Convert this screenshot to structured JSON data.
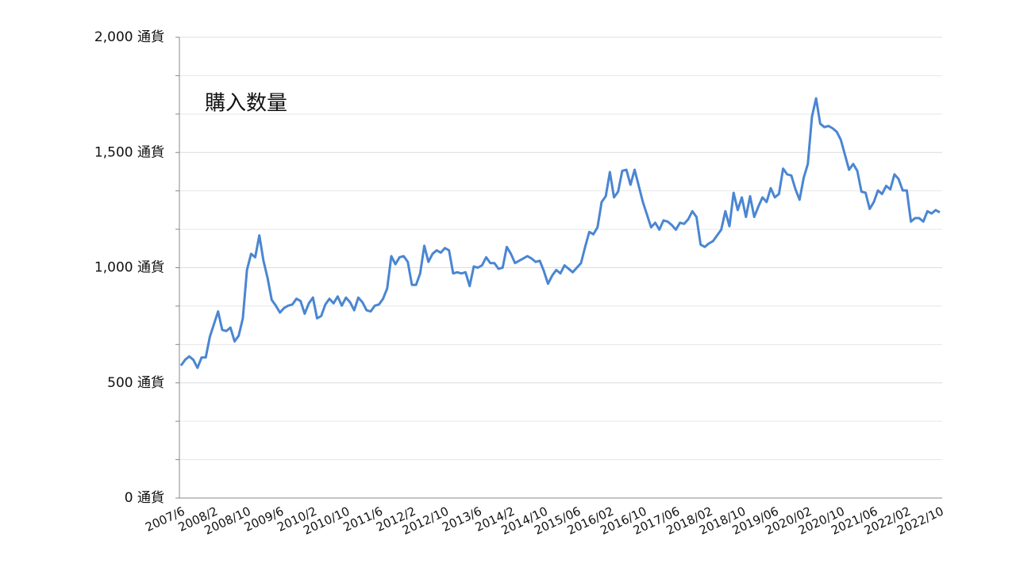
{
  "chart_data": {
    "type": "line",
    "annotation": "購入数量",
    "categories": [
      "2007/6",
      null,
      null,
      null,
      null,
      null,
      null,
      null,
      "2008/2",
      null,
      null,
      null,
      null,
      null,
      null,
      null,
      "2008/10",
      null,
      null,
      null,
      null,
      null,
      null,
      null,
      "2009/6",
      null,
      null,
      null,
      null,
      null,
      null,
      null,
      "2010/2",
      null,
      null,
      null,
      null,
      null,
      null,
      null,
      "2010/10",
      null,
      null,
      null,
      null,
      null,
      null,
      null,
      "2011/6",
      null,
      null,
      null,
      null,
      null,
      null,
      null,
      "2012/2",
      null,
      null,
      null,
      null,
      null,
      null,
      null,
      "2012/10",
      null,
      null,
      null,
      null,
      null,
      null,
      null,
      "2013/6",
      null,
      null,
      null,
      null,
      null,
      null,
      null,
      "2014/2",
      null,
      null,
      null,
      null,
      null,
      null,
      null,
      "2014/10",
      null,
      null,
      null,
      null,
      null,
      null,
      null,
      "2015/06",
      null,
      null,
      null,
      null,
      null,
      null,
      null,
      "2016/02",
      null,
      null,
      null,
      null,
      null,
      null,
      null,
      "2016/10",
      null,
      null,
      null,
      null,
      null,
      null,
      null,
      "2017/06",
      null,
      null,
      null,
      null,
      null,
      null,
      null,
      "2018/02",
      null,
      null,
      null,
      null,
      null,
      null,
      null,
      "2018/10",
      null,
      null,
      null,
      null,
      null,
      null,
      null,
      "2019/06",
      null,
      null,
      null,
      null,
      null,
      null,
      null,
      "2020/02",
      null,
      null,
      null,
      null,
      null,
      null,
      null,
      "2020/10",
      null,
      null,
      null,
      null,
      null,
      null,
      null,
      "2021/06",
      null,
      null,
      null,
      null,
      null,
      null,
      null,
      "2022/02",
      null,
      null,
      null,
      null,
      null,
      null,
      null,
      "2022/10"
    ],
    "series": [
      {
        "color": "#4a86d2",
        "values": [
          575,
          600,
          615,
          600,
          565,
          610,
          610,
          700,
          755,
          810,
          730,
          725,
          740,
          680,
          705,
          780,
          990,
          1060,
          1045,
          1140,
          1030,
          955,
          860,
          835,
          805,
          825,
          835,
          840,
          865,
          855,
          800,
          845,
          870,
          780,
          790,
          840,
          865,
          845,
          875,
          835,
          870,
          850,
          815,
          870,
          850,
          815,
          810,
          835,
          840,
          865,
          910,
          1050,
          1015,
          1045,
          1050,
          1025,
          925,
          925,
          975,
          1095,
          1025,
          1060,
          1075,
          1065,
          1085,
          1075,
          975,
          980,
          975,
          980,
          920,
          1005,
          1000,
          1010,
          1045,
          1020,
          1020,
          995,
          1000,
          1090,
          1060,
          1020,
          1030,
          1040,
          1050,
          1040,
          1025,
          1030,
          985,
          930,
          965,
          990,
          975,
          1010,
          995,
          980,
          1000,
          1020,
          1090,
          1155,
          1145,
          1175,
          1285,
          1310,
          1415,
          1305,
          1330,
          1420,
          1425,
          1360,
          1425,
          1355,
          1285,
          1230,
          1175,
          1195,
          1165,
          1205,
          1200,
          1185,
          1165,
          1195,
          1190,
          1210,
          1245,
          1220,
          1100,
          1090,
          1105,
          1115,
          1140,
          1165,
          1245,
          1180,
          1325,
          1250,
          1305,
          1220,
          1310,
          1220,
          1265,
          1305,
          1285,
          1345,
          1305,
          1320,
          1430,
          1405,
          1400,
          1340,
          1295,
          1390,
          1450,
          1655,
          1735,
          1625,
          1610,
          1615,
          1605,
          1590,
          1555,
          1490,
          1425,
          1450,
          1420,
          1330,
          1325,
          1255,
          1285,
          1335,
          1320,
          1355,
          1340,
          1405,
          1385,
          1335,
          1335,
          1200,
          1215,
          1215,
          1200,
          1245,
          1235,
          1250,
          1240
        ]
      }
    ],
    "ylim": [
      0,
      2000
    ],
    "yticks": [
      {
        "value": 0,
        "label": "0 通貨"
      },
      {
        "value": 500,
        "label": "500 通貨"
      },
      {
        "value": 1000,
        "label": "1,000 通貨"
      },
      {
        "value": 1500,
        "label": "1,500 通貨"
      },
      {
        "value": 2000,
        "label": "2,000 通貨"
      }
    ],
    "minor_yticks": [
      166.67,
      333.33,
      666.67,
      833.33,
      1166.67,
      1333.33,
      1666.67,
      1833.33
    ],
    "grid": true
  }
}
